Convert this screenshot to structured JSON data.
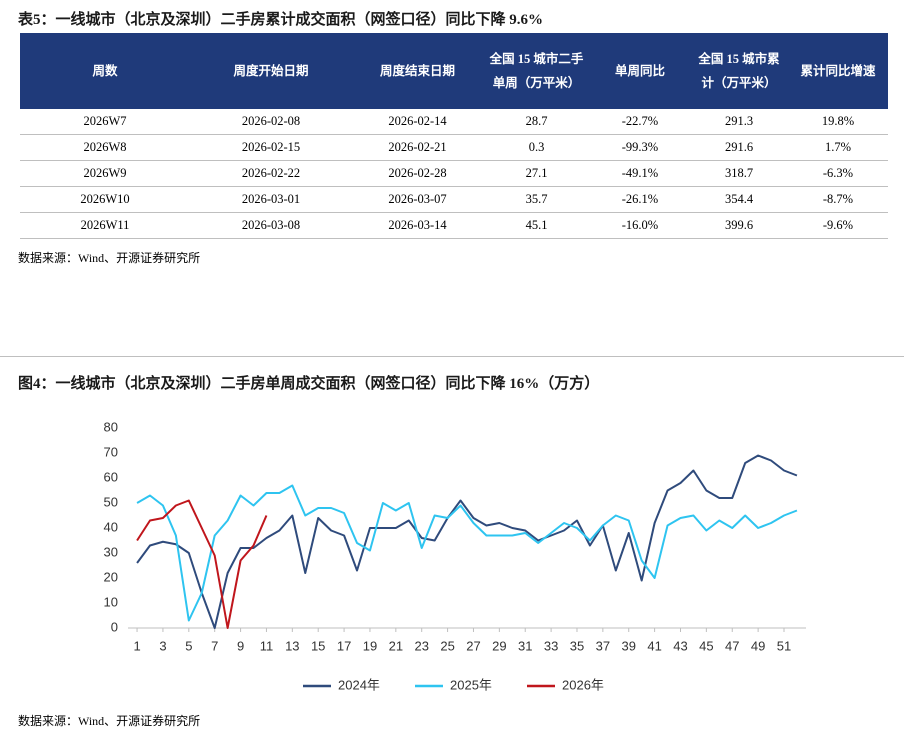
{
  "table_section": {
    "title": "表5：一线城市（北京及深圳）二手房累计成交面积（网签口径）同比下降 9.6%",
    "header": [
      "周数",
      "周度开始日期",
      "周度结束日期",
      "全国 15 城市二手单周（万平米）",
      "单周同比",
      "全国 15 城市累计（万平米）",
      "累计同比增速"
    ],
    "rows": [
      [
        "2026W7",
        "2026-02-08",
        "2026-02-14",
        "28.7",
        "-22.7%",
        "291.3",
        "19.8%"
      ],
      [
        "2026W8",
        "2026-02-15",
        "2026-02-21",
        "0.3",
        "-99.3%",
        "291.6",
        "1.7%"
      ],
      [
        "2026W9",
        "2026-02-22",
        "2026-02-28",
        "27.1",
        "-49.1%",
        "318.7",
        "-6.3%"
      ],
      [
        "2026W10",
        "2026-03-01",
        "2026-03-07",
        "35.7",
        "-26.1%",
        "354.4",
        "-8.7%"
      ],
      [
        "2026W11",
        "2026-03-08",
        "2026-03-14",
        "45.1",
        "-16.0%",
        "399.6",
        "-9.6%"
      ]
    ],
    "source": "数据来源：Wind、开源证券研究所"
  },
  "chart_data": {
    "type": "line",
    "title": "图4：一线城市（北京及深圳）二手房单周成交面积（网签口径）同比下降 16%（万方）",
    "x": [
      1,
      2,
      3,
      4,
      5,
      6,
      7,
      8,
      9,
      10,
      11,
      12,
      13,
      14,
      15,
      16,
      17,
      18,
      19,
      20,
      21,
      22,
      23,
      24,
      25,
      26,
      27,
      28,
      29,
      30,
      31,
      32,
      33,
      34,
      35,
      36,
      37,
      38,
      39,
      40,
      41,
      42,
      43,
      44,
      45,
      46,
      47,
      48,
      49,
      50,
      51,
      52
    ],
    "series": [
      {
        "name": "2024年",
        "color": "#2f4b7c",
        "values": [
          26,
          33,
          34.5,
          33.5,
          30,
          14,
          0,
          22,
          32,
          32,
          36,
          39,
          45,
          22,
          44,
          39,
          37,
          23,
          40,
          40,
          40,
          43,
          36,
          35,
          44,
          51,
          44,
          41,
          42,
          40,
          39,
          35,
          37,
          39,
          43,
          33,
          41,
          23,
          38,
          19,
          42,
          55,
          58,
          63,
          55,
          52,
          52,
          66,
          69,
          67,
          63,
          61
        ]
      },
      {
        "name": "2025年",
        "color": "#2ec4f0",
        "values": [
          50,
          53,
          49,
          37,
          3,
          14,
          37,
          43,
          53,
          49,
          54,
          54,
          57,
          45,
          48,
          48,
          46,
          34,
          31,
          50,
          47,
          50,
          32,
          45,
          44,
          49,
          42,
          37,
          37,
          37,
          38,
          34,
          38,
          42,
          40,
          35,
          41,
          45,
          43,
          27,
          20,
          41,
          44,
          45,
          39,
          43,
          40,
          45,
          40,
          42,
          45,
          47
        ]
      },
      {
        "name": "2026年",
        "color": "#c0161c",
        "values": [
          35,
          43,
          44,
          49,
          51,
          40,
          29,
          0,
          27,
          33,
          45,
          null,
          null,
          null,
          null,
          null,
          null,
          null,
          null,
          null,
          null,
          null,
          null,
          null,
          null,
          null,
          null,
          null,
          null,
          null,
          null,
          null,
          null,
          null,
          null,
          null,
          null,
          null,
          null,
          null,
          null,
          null,
          null,
          null,
          null,
          null,
          null,
          null,
          null,
          null,
          null,
          null
        ]
      }
    ],
    "xlim": [
      0.3,
      52.7
    ],
    "xticks": [
      1,
      3,
      5,
      7,
      9,
      11,
      13,
      15,
      17,
      19,
      21,
      23,
      25,
      27,
      29,
      31,
      33,
      35,
      37,
      39,
      41,
      43,
      45,
      47,
      49,
      51
    ],
    "ylim": [
      0,
      80
    ],
    "yticks": [
      0,
      10,
      20,
      30,
      40,
      50,
      60,
      70,
      80
    ],
    "grid": false,
    "legend": "bottom",
    "source": "数据来源：Wind、开源证券研究所"
  }
}
